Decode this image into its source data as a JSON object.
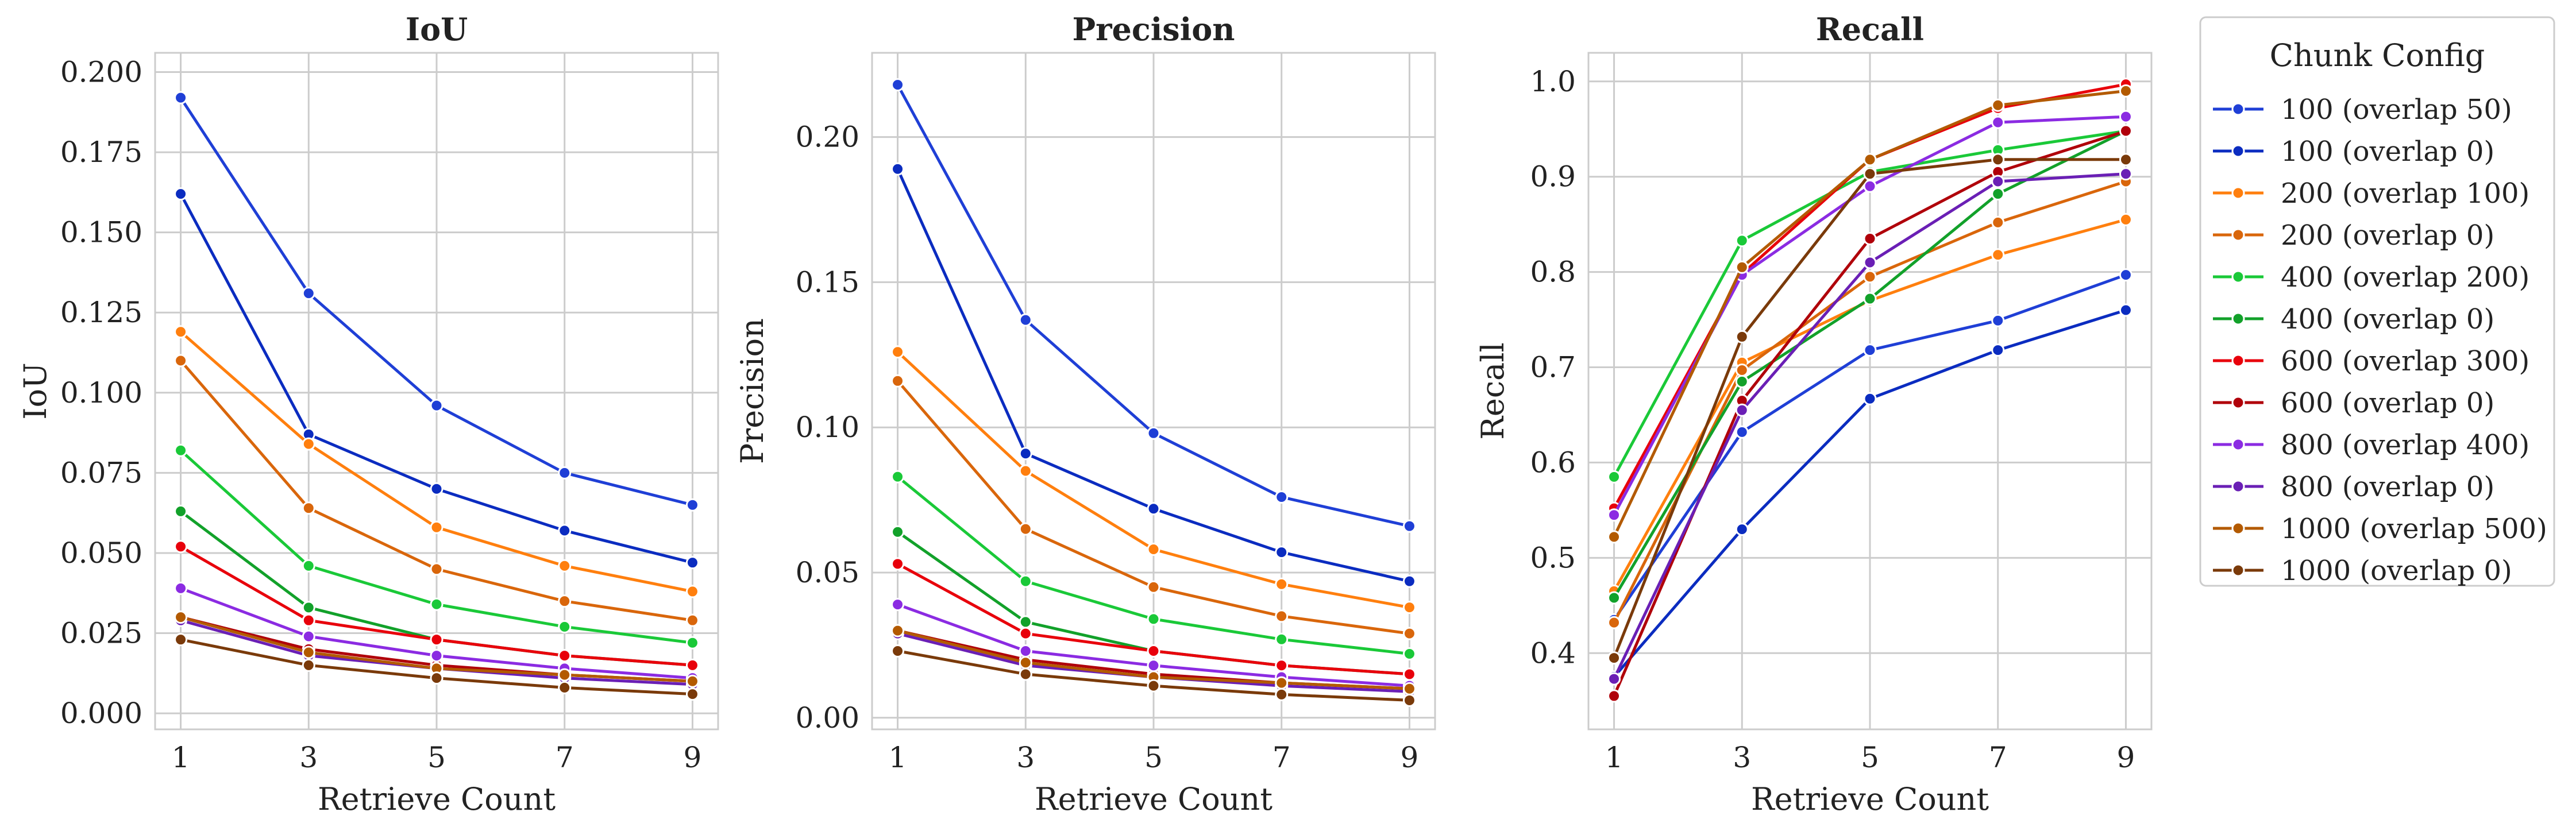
{
  "chart_data": {
    "type": "line",
    "x": [
      1,
      3,
      5,
      7,
      9
    ],
    "xlabel": "Retrieve Count",
    "panels": [
      {
        "title": "IoU",
        "ylabel": "IoU",
        "ylim": [
          -0.005,
          0.206
        ],
        "yticks": [
          "0.000",
          "0.025",
          "0.050",
          "0.075",
          "0.100",
          "0.125",
          "0.150",
          "0.175",
          "0.200"
        ],
        "ytick_values": [
          0,
          0.025,
          0.05,
          0.075,
          0.1,
          0.125,
          0.15,
          0.175,
          0.2
        ]
      },
      {
        "title": "Precision",
        "ylabel": "Precision",
        "ylim": [
          -0.004,
          0.229
        ],
        "yticks": [
          "0.00",
          "0.05",
          "0.10",
          "0.15",
          "0.20"
        ],
        "ytick_values": [
          0,
          0.05,
          0.1,
          0.15,
          0.2
        ]
      },
      {
        "title": "Recall",
        "ylabel": "Recall",
        "ylim": [
          0.32,
          1.03
        ],
        "yticks": [
          "0.4",
          "0.5",
          "0.6",
          "0.7",
          "0.8",
          "0.9",
          "1.0"
        ],
        "ytick_values": [
          0.4,
          0.5,
          0.6,
          0.7,
          0.8,
          0.9,
          1.0
        ]
      }
    ],
    "legend": {
      "title": "Chunk Config",
      "placement": "outside-right"
    },
    "grid": true,
    "series": [
      {
        "name": "100 (overlap 50)",
        "color": "#1f3fd6",
        "iou": [
          0.192,
          0.131,
          0.096,
          0.075,
          0.065
        ],
        "precision": [
          0.218,
          0.137,
          0.098,
          0.076,
          0.066
        ],
        "recall": [
          0.435,
          0.632,
          0.718,
          0.749,
          0.797
        ]
      },
      {
        "name": "100 (overlap 0)",
        "color": "#0b2cc0",
        "iou": [
          0.162,
          0.087,
          0.07,
          0.057,
          0.047
        ],
        "precision": [
          0.189,
          0.091,
          0.072,
          0.057,
          0.047
        ],
        "recall": [
          0.375,
          0.53,
          0.667,
          0.718,
          0.76
        ]
      },
      {
        "name": "200 (overlap 100)",
        "color": "#ff7f0e",
        "iou": [
          0.119,
          0.084,
          0.058,
          0.046,
          0.038
        ],
        "precision": [
          0.126,
          0.085,
          0.058,
          0.046,
          0.038
        ],
        "recall": [
          0.465,
          0.705,
          0.77,
          0.818,
          0.855
        ]
      },
      {
        "name": "200 (overlap 0)",
        "color": "#d9660b",
        "iou": [
          0.11,
          0.064,
          0.045,
          0.035,
          0.029
        ],
        "precision": [
          0.116,
          0.065,
          0.045,
          0.035,
          0.029
        ],
        "recall": [
          0.432,
          0.697,
          0.795,
          0.852,
          0.895
        ]
      },
      {
        "name": "400 (overlap 200)",
        "color": "#1ac938",
        "iou": [
          0.082,
          0.046,
          0.034,
          0.027,
          0.022
        ],
        "precision": [
          0.083,
          0.047,
          0.034,
          0.027,
          0.022
        ],
        "recall": [
          0.585,
          0.833,
          0.905,
          0.928,
          0.948
        ]
      },
      {
        "name": "400 (overlap 0)",
        "color": "#12a12a",
        "iou": [
          0.063,
          0.033,
          0.023,
          0.018,
          0.015
        ],
        "precision": [
          0.064,
          0.033,
          0.023,
          0.018,
          0.015
        ],
        "recall": [
          0.458,
          0.685,
          0.772,
          0.882,
          0.948
        ]
      },
      {
        "name": "600 (overlap 300)",
        "color": "#e8000b",
        "iou": [
          0.052,
          0.029,
          0.023,
          0.018,
          0.015
        ],
        "precision": [
          0.053,
          0.029,
          0.023,
          0.018,
          0.015
        ],
        "recall": [
          0.552,
          0.798,
          0.918,
          0.972,
          0.997
        ]
      },
      {
        "name": "600 (overlap 0)",
        "color": "#b0000a",
        "iou": [
          0.03,
          0.02,
          0.015,
          0.012,
          0.01
        ],
        "precision": [
          0.03,
          0.02,
          0.015,
          0.012,
          0.01
        ],
        "recall": [
          0.355,
          0.665,
          0.835,
          0.905,
          0.948
        ]
      },
      {
        "name": "800 (overlap 400)",
        "color": "#8b2be2",
        "iou": [
          0.039,
          0.024,
          0.018,
          0.014,
          0.011
        ],
        "precision": [
          0.039,
          0.023,
          0.018,
          0.014,
          0.011
        ],
        "recall": [
          0.545,
          0.797,
          0.89,
          0.957,
          0.963
        ]
      },
      {
        "name": "800 (overlap 0)",
        "color": "#6a1fb5",
        "iou": [
          0.029,
          0.018,
          0.014,
          0.011,
          0.009
        ],
        "precision": [
          0.029,
          0.018,
          0.014,
          0.011,
          0.009
        ],
        "recall": [
          0.373,
          0.655,
          0.81,
          0.895,
          0.903
        ]
      },
      {
        "name": "1000 (overlap 500)",
        "color": "#b35a00",
        "iou": [
          0.03,
          0.019,
          0.014,
          0.012,
          0.01
        ],
        "precision": [
          0.03,
          0.019,
          0.014,
          0.012,
          0.01
        ],
        "recall": [
          0.522,
          0.805,
          0.918,
          0.975,
          0.99
        ]
      },
      {
        "name": "1000 (overlap 0)",
        "color": "#7a3a0a",
        "iou": [
          0.023,
          0.015,
          0.011,
          0.008,
          0.006
        ],
        "precision": [
          0.023,
          0.015,
          0.011,
          0.008,
          0.006
        ],
        "recall": [
          0.395,
          0.732,
          0.903,
          0.918,
          0.918
        ]
      }
    ]
  }
}
